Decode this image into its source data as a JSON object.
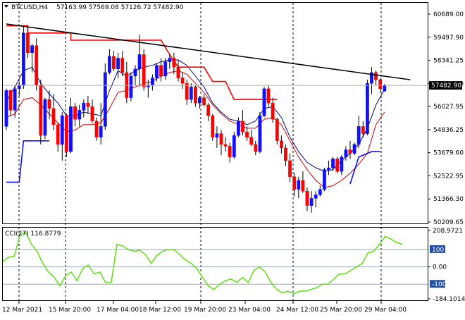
{
  "header": {
    "symbol": "BTCUSD,H4",
    "ohlc": "57163.99 57569.08 57126.72 57482.90"
  },
  "price_axis": {
    "ticks": [
      "60689.00",
      "59497.90",
      "58341.25",
      "57184.60",
      "56027.95",
      "54836.25",
      "53679.60",
      "52522.95",
      "51366.30",
      "50209.65"
    ],
    "current_price": "57482.90"
  },
  "cci_panel": {
    "label": "CCI(27) 116.8779",
    "axis_ticks": [
      "208.9721",
      "100",
      "0.00",
      "-100",
      "-184.1014"
    ]
  },
  "time_axis": {
    "labels": [
      "12 Mar 2021",
      "15 Mar 20:00",
      "17 Mar 04:00",
      "18 Mar 12:00",
      "19 Mar 20:00",
      "23 Mar 04:00",
      "24 Mar 12:00",
      "25 Mar 20:00",
      "29 Mar 04:00"
    ]
  },
  "colors": {
    "bull": "#1010ff",
    "bear": "#ff0000",
    "ma_fast": "#000080",
    "ma_slow": "#d00000",
    "trendline": "#000000",
    "cci": "#66e020"
  },
  "chart_data": {
    "type": "candlestick",
    "price_range": [
      50000,
      61450
    ],
    "candles": [
      [
        55200,
        57300,
        55000,
        57200
      ],
      [
        57200,
        57250,
        55800,
        56100
      ],
      [
        56100,
        57500,
        55700,
        57300
      ],
      [
        57300,
        57700,
        56900,
        57500
      ],
      [
        57500,
        60800,
        57300,
        60400
      ],
      [
        60400,
        60700,
        59000,
        59300
      ],
      [
        59300,
        59800,
        58200,
        59700
      ],
      [
        59700,
        60100,
        57200,
        57500
      ],
      [
        57500,
        57800,
        54200,
        54700
      ],
      [
        54700,
        56800,
        54500,
        56700
      ],
      [
        56700,
        57200,
        55600,
        56200
      ],
      [
        56200,
        57000,
        55000,
        55300
      ],
      [
        55300,
        55400,
        53800,
        54200
      ],
      [
        54200,
        56000,
        53300,
        55800
      ],
      [
        55800,
        55900,
        53500,
        53800
      ],
      [
        53800,
        56800,
        53700,
        56300
      ],
      [
        56300,
        56500,
        55200,
        55600
      ],
      [
        55600,
        56400,
        55200,
        56100
      ],
      [
        56100,
        56700,
        55700,
        56500
      ],
      [
        56500,
        56900,
        55900,
        56300
      ],
      [
        56300,
        56700,
        55400,
        55500
      ],
      [
        55500,
        55700,
        54400,
        54600
      ],
      [
        54600,
        56500,
        54200,
        55200
      ],
      [
        55200,
        58700,
        55000,
        58200
      ],
      [
        58200,
        59500,
        58100,
        59100
      ],
      [
        59100,
        59400,
        58300,
        58400
      ],
      [
        58400,
        59300,
        57900,
        59000
      ],
      [
        59000,
        59400,
        58000,
        58200
      ],
      [
        58200,
        58800,
        56500,
        56800
      ],
      [
        56800,
        58200,
        56600,
        58000
      ],
      [
        58000,
        58600,
        57500,
        58400
      ],
      [
        58400,
        60300,
        57400,
        59200
      ],
      [
        59200,
        59500,
        57200,
        57400
      ],
      [
        57400,
        57800,
        56800,
        57500
      ],
      [
        57500,
        58100,
        57200,
        57900
      ],
      [
        57900,
        58700,
        57700,
        58600
      ],
      [
        58600,
        59000,
        57700,
        58000
      ],
      [
        58000,
        59000,
        57800,
        58800
      ],
      [
        58800,
        59200,
        58400,
        59000
      ],
      [
        59000,
        59300,
        58100,
        58500
      ],
      [
        58500,
        58900,
        57700,
        57900
      ],
      [
        57900,
        58200,
        57300,
        57600
      ],
      [
        57600,
        57800,
        56400,
        56700
      ],
      [
        56700,
        57600,
        56500,
        57400
      ],
      [
        57400,
        57500,
        56300,
        56500
      ],
      [
        56500,
        56900,
        56200,
        56800
      ],
      [
        56800,
        57000,
        56300,
        56400
      ],
      [
        56400,
        56500,
        55500,
        55800
      ],
      [
        55800,
        55900,
        54400,
        54600
      ],
      [
        54600,
        55200,
        54000,
        54800
      ],
      [
        54800,
        55000,
        53600,
        54200
      ],
      [
        54200,
        54600,
        53800,
        54100
      ],
      [
        54100,
        54300,
        53200,
        53500
      ],
      [
        53500,
        54900,
        53400,
        54700
      ],
      [
        54700,
        55700,
        54600,
        55500
      ],
      [
        55500,
        56100,
        54700,
        54900
      ],
      [
        54900,
        55200,
        54400,
        54600
      ],
      [
        54600,
        55000,
        54100,
        54200
      ],
      [
        54200,
        54400,
        53600,
        53800
      ],
      [
        53800,
        56000,
        53700,
        55800
      ],
      [
        55800,
        57400,
        55700,
        57300
      ],
      [
        57300,
        57500,
        56300,
        56500
      ],
      [
        56500,
        56800,
        55400,
        55600
      ],
      [
        55600,
        55700,
        54200,
        54400
      ],
      [
        54400,
        54700,
        53700,
        54000
      ],
      [
        54000,
        54200,
        53000,
        53300
      ],
      [
        53300,
        53700,
        52100,
        52400
      ],
      [
        52400,
        52600,
        51300,
        51700
      ],
      [
        51700,
        52400,
        51200,
        52200
      ],
      [
        52200,
        52700,
        51500,
        51600
      ],
      [
        51600,
        51800,
        50500,
        50800
      ],
      [
        50800,
        51600,
        50400,
        51200
      ],
      [
        51200,
        51600,
        50700,
        51400
      ],
      [
        51400,
        51900,
        51300,
        51700
      ],
      [
        51700,
        52900,
        51600,
        52800
      ],
      [
        52800,
        53300,
        52500,
        52900
      ],
      [
        52900,
        53500,
        52700,
        53400
      ],
      [
        53400,
        53500,
        52600,
        52700
      ],
      [
        52700,
        53600,
        52500,
        53500
      ],
      [
        53500,
        54100,
        53300,
        53900
      ],
      [
        53900,
        54400,
        53400,
        53700
      ],
      [
        53700,
        54300,
        53600,
        54200
      ],
      [
        54200,
        55800,
        54000,
        55200
      ],
      [
        55200,
        55500,
        54600,
        54800
      ],
      [
        54800,
        57800,
        54700,
        57600
      ],
      [
        57600,
        58500,
        57000,
        58200
      ],
      [
        58200,
        58300,
        57500,
        57800
      ],
      [
        57800,
        57900,
        57100,
        57300
      ],
      [
        57163.99,
        57569.08,
        57126.72,
        57482.9
      ]
    ],
    "ma_fast": [
      [
        0,
        56600
      ],
      [
        2,
        57400
      ],
      [
        4,
        58300
      ],
      [
        6,
        58500
      ],
      [
        8,
        57600
      ],
      [
        10,
        57000
      ],
      [
        12,
        56500
      ],
      [
        14,
        55800
      ],
      [
        16,
        55800
      ],
      [
        18,
        56000
      ],
      [
        20,
        55900
      ],
      [
        22,
        55800
      ],
      [
        24,
        57200
      ],
      [
        26,
        58300
      ],
      [
        28,
        58000
      ],
      [
        30,
        58300
      ],
      [
        32,
        58500
      ],
      [
        34,
        58600
      ],
      [
        36,
        58800
      ],
      [
        38,
        58900
      ],
      [
        40,
        58900
      ],
      [
        42,
        58600
      ],
      [
        44,
        58000
      ],
      [
        46,
        57400
      ],
      [
        48,
        56500
      ],
      [
        50,
        56000
      ],
      [
        52,
        55600
      ],
      [
        54,
        55500
      ],
      [
        56,
        55300
      ],
      [
        58,
        55500
      ],
      [
        60,
        56200
      ],
      [
        62,
        56300
      ],
      [
        64,
        55700
      ],
      [
        66,
        54600
      ],
      [
        68,
        53800
      ],
      [
        70,
        53200
      ],
      [
        72,
        52900
      ],
      [
        74,
        52700
      ],
      [
        76,
        52800
      ],
      [
        78,
        53300
      ],
      [
        80,
        53700
      ],
      [
        82,
        54200
      ],
      [
        84,
        55100
      ],
      [
        86,
        56400
      ],
      [
        88,
        57250
      ]
    ],
    "ma_slow": [
      [
        0,
        55700
      ],
      [
        2,
        55900
      ],
      [
        4,
        56700
      ],
      [
        6,
        56800
      ],
      [
        8,
        56400
      ],
      [
        10,
        55900
      ],
      [
        12,
        55400
      ],
      [
        14,
        54900
      ],
      [
        16,
        55000
      ],
      [
        18,
        55300
      ],
      [
        20,
        55300
      ],
      [
        22,
        55400
      ],
      [
        24,
        56200
      ],
      [
        26,
        57100
      ],
      [
        28,
        57200
      ],
      [
        30,
        57400
      ],
      [
        32,
        57600
      ],
      [
        34,
        57700
      ],
      [
        36,
        58000
      ],
      [
        38,
        58200
      ],
      [
        40,
        58300
      ],
      [
        42,
        58100
      ],
      [
        44,
        57600
      ],
      [
        46,
        57100
      ],
      [
        48,
        56400
      ],
      [
        50,
        55900
      ],
      [
        52,
        55500
      ],
      [
        54,
        55300
      ],
      [
        56,
        55100
      ],
      [
        58,
        55100
      ],
      [
        60,
        55600
      ],
      [
        62,
        55700
      ],
      [
        64,
        55300
      ],
      [
        66,
        54400
      ],
      [
        68,
        53500
      ],
      [
        70,
        52800
      ],
      [
        72,
        52200
      ],
      [
        74,
        51800
      ],
      [
        76,
        51900
      ],
      [
        78,
        52200
      ],
      [
        80,
        52600
      ],
      [
        82,
        53100
      ],
      [
        84,
        53700
      ],
      [
        86,
        55300
      ],
      [
        88,
        56000
      ]
    ],
    "red_step": [
      [
        0,
        60800
      ],
      [
        5,
        60800
      ],
      [
        5,
        60400
      ],
      [
        15,
        60400
      ],
      [
        15,
        60000
      ],
      [
        36,
        60000
      ],
      [
        38,
        59200
      ],
      [
        40,
        58500
      ],
      [
        46,
        58500
      ],
      [
        48,
        57700
      ],
      [
        51,
        57700
      ],
      [
        53,
        56700
      ],
      [
        63,
        56700
      ]
    ],
    "blue_step_a": [
      [
        0,
        52100
      ],
      [
        3,
        52100
      ],
      [
        4,
        54400
      ],
      [
        10,
        54400
      ]
    ],
    "blue_step_b": [
      [
        80,
        52000
      ],
      [
        82,
        53500
      ],
      [
        85,
        53800
      ],
      [
        87,
        53800
      ]
    ],
    "trendline": [
      [
        0,
        60900
      ],
      [
        94,
        57800
      ]
    ],
    "cci": [
      [
        0,
        30
      ],
      [
        1,
        55
      ],
      [
        2,
        60
      ],
      [
        3,
        180
      ],
      [
        4,
        200
      ],
      [
        5,
        130
      ],
      [
        6,
        90
      ],
      [
        7,
        20
      ],
      [
        8,
        -30
      ],
      [
        9,
        -60
      ],
      [
        10,
        -110
      ],
      [
        11,
        -50
      ],
      [
        12,
        -30
      ],
      [
        13,
        -80
      ],
      [
        14,
        -10
      ],
      [
        15,
        10
      ],
      [
        16,
        -40
      ],
      [
        17,
        -30
      ],
      [
        18,
        -90
      ],
      [
        19,
        -90
      ],
      [
        20,
        130
      ],
      [
        21,
        120
      ],
      [
        22,
        100
      ],
      [
        23,
        90
      ],
      [
        24,
        95
      ],
      [
        25,
        70
      ],
      [
        26,
        20
      ],
      [
        27,
        65
      ],
      [
        28,
        90
      ],
      [
        29,
        100
      ],
      [
        30,
        100
      ],
      [
        31,
        70
      ],
      [
        32,
        40
      ],
      [
        33,
        20
      ],
      [
        34,
        -10
      ],
      [
        35,
        -60
      ],
      [
        36,
        -110
      ],
      [
        37,
        -130
      ],
      [
        38,
        -100
      ],
      [
        39,
        -80
      ],
      [
        40,
        -70
      ],
      [
        41,
        -90
      ],
      [
        42,
        -60
      ],
      [
        43,
        -90
      ],
      [
        44,
        -20
      ],
      [
        45,
        0
      ],
      [
        46,
        -30
      ],
      [
        47,
        -90
      ],
      [
        48,
        -130
      ],
      [
        49,
        -150
      ],
      [
        50,
        -140
      ],
      [
        51,
        -155
      ],
      [
        52,
        -140
      ],
      [
        53,
        -140
      ],
      [
        54,
        -130
      ],
      [
        55,
        -120
      ],
      [
        56,
        -100
      ],
      [
        57,
        -100
      ],
      [
        58,
        -70
      ],
      [
        59,
        -40
      ],
      [
        60,
        -40
      ],
      [
        61,
        -20
      ],
      [
        62,
        0
      ],
      [
        63,
        20
      ],
      [
        64,
        80
      ],
      [
        65,
        90
      ],
      [
        66,
        130
      ],
      [
        67,
        175
      ],
      [
        68,
        160
      ],
      [
        69,
        140
      ],
      [
        70,
        130
      ]
    ],
    "cci_range": [
      -184.1014,
      208.9721
    ],
    "cci_levels": [
      100,
      0,
      -100
    ],
    "vertical_lines": [
      "12 Mar 2021",
      "15 Mar 20:00",
      "19 Mar 20:00",
      "24 Mar 12:00",
      "29 Mar 04:00"
    ],
    "grid": false
  }
}
